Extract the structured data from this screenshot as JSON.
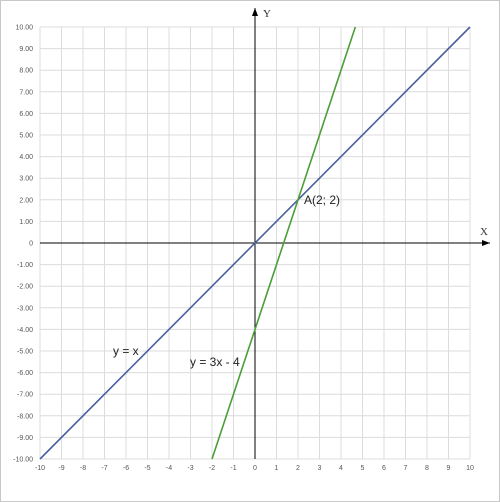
{
  "chart_data": {
    "type": "line",
    "xlabel": "X",
    "ylabel": "Y",
    "xlim": [
      -10,
      10
    ],
    "ylim": [
      -10,
      10
    ],
    "grid": true,
    "x_ticks": [
      "-10",
      "-9",
      "-8",
      "-7",
      "-6",
      "-5",
      "-4",
      "-3",
      "-2",
      "-1",
      "0",
      "1",
      "2",
      "3",
      "4",
      "5",
      "6",
      "7",
      "8",
      "9",
      "10"
    ],
    "y_ticks": [
      "10.00",
      "9.00",
      "8.00",
      "7.00",
      "6.00",
      "5.00",
      "4.00",
      "3.00",
      "2.00",
      "1.00",
      "0",
      "-1.00",
      "-2.00",
      "-3.00",
      "-4.00",
      "-5.00",
      "-6.00",
      "-7.00",
      "-8.00",
      "-9.00",
      "-10.00"
    ],
    "series": [
      {
        "name": "y = x",
        "color": "#4a5f9e",
        "x": [
          -10,
          10
        ],
        "y": [
          -10,
          10
        ]
      },
      {
        "name": "y = 3x - 4",
        "color": "#4b9e3a",
        "x": [
          -2,
          4.667
        ],
        "y": [
          -10,
          10
        ]
      }
    ],
    "annotations": [
      {
        "text": "A(2; 2)",
        "x": 2,
        "y": 2
      }
    ]
  }
}
